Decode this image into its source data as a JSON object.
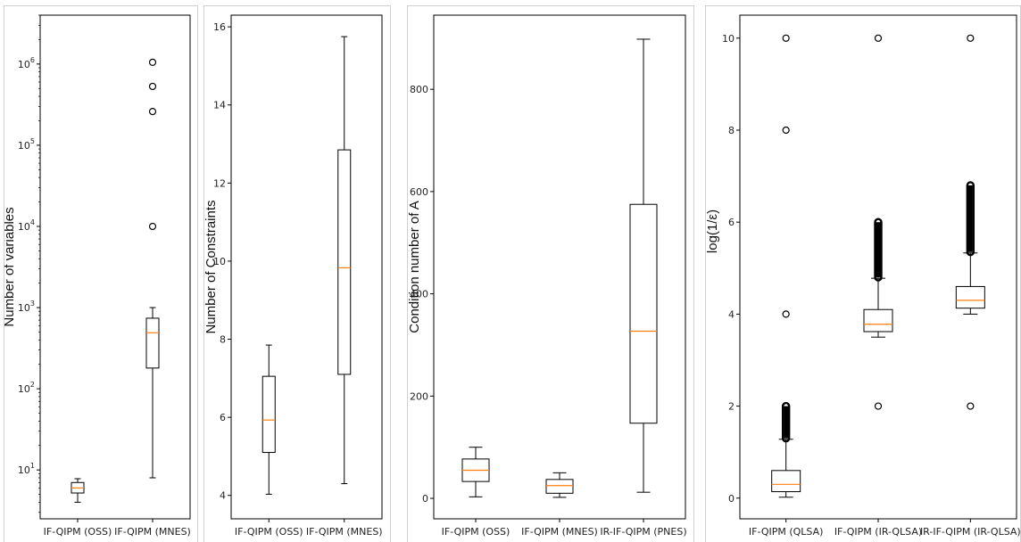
{
  "chart_data": [
    {
      "type": "box",
      "ylabel": "Number of variables",
      "yscale": "log",
      "ylim": [
        2.5,
        4000000
      ],
      "yticks": [
        {
          "value": 10,
          "base": "10",
          "exp": "1"
        },
        {
          "value": 100,
          "base": "10",
          "exp": "2"
        },
        {
          "value": 1000,
          "base": "10",
          "exp": "3"
        },
        {
          "value": 10000,
          "base": "10",
          "exp": "4"
        },
        {
          "value": 100000,
          "base": "10",
          "exp": "5"
        },
        {
          "value": 1000000,
          "base": "10",
          "exp": "6"
        }
      ],
      "categories": [
        "IF-QIPM (OSS)",
        "IF-QIPM (MNES)"
      ],
      "boxes": [
        {
          "whislo": 4,
          "q1": 5.2,
          "med": 6,
          "q3": 7,
          "whishi": 7.8,
          "fliers": []
        },
        {
          "whislo": 8,
          "q1": 180,
          "med": 490,
          "q3": 740,
          "whishi": 1000,
          "fliers": [
            10000,
            260000,
            530000,
            1050000
          ]
        }
      ]
    },
    {
      "type": "box",
      "ylabel": "Number of Constraints",
      "yscale": "linear",
      "ylim": [
        3.4,
        16.3
      ],
      "yticks": [
        {
          "value": 4,
          "label": "4"
        },
        {
          "value": 6,
          "label": "6"
        },
        {
          "value": 8,
          "label": "8"
        },
        {
          "value": 10,
          "label": "10"
        },
        {
          "value": 12,
          "label": "12"
        },
        {
          "value": 14,
          "label": "14"
        },
        {
          "value": 16,
          "label": "16"
        }
      ],
      "categories": [
        "IF-QIPM (OSS)",
        "IF-QIPM (MNES)"
      ],
      "boxes": [
        {
          "whislo": 4.03,
          "q1": 5.1,
          "med": 5.93,
          "q3": 7.05,
          "whishi": 7.85,
          "fliers": []
        },
        {
          "whislo": 4.3,
          "q1": 7.1,
          "med": 9.83,
          "q3": 12.85,
          "whishi": 15.75,
          "fliers": []
        }
      ]
    },
    {
      "type": "box",
      "ylabel": "Condition number of A",
      "yscale": "linear",
      "ylim": [
        -40,
        945
      ],
      "yticks": [
        {
          "value": 0,
          "label": "0"
        },
        {
          "value": 200,
          "label": "200"
        },
        {
          "value": 400,
          "label": "400"
        },
        {
          "value": 600,
          "label": "600"
        },
        {
          "value": 800,
          "label": "800"
        }
      ],
      "categories": [
        "IF-QIPM (OSS)",
        "IF-QIPM (MNES)",
        "IR-IF-QIPM (PNES)"
      ],
      "boxes": [
        {
          "whislo": 3,
          "q1": 33,
          "med": 55,
          "q3": 77,
          "whishi": 100,
          "fliers": []
        },
        {
          "whislo": 2,
          "q1": 10,
          "med": 25,
          "q3": 37,
          "whishi": 50,
          "fliers": []
        },
        {
          "whislo": 12,
          "q1": 147,
          "med": 327,
          "q3": 575,
          "whishi": 898,
          "fliers": []
        }
      ]
    },
    {
      "type": "box",
      "ylabel": "log(1/ε)",
      "yscale": "linear",
      "ylim": [
        -0.45,
        10.5
      ],
      "yticks": [
        {
          "value": 0,
          "label": "0"
        },
        {
          "value": 2,
          "label": "2"
        },
        {
          "value": 4,
          "label": "4"
        },
        {
          "value": 6,
          "label": "6"
        },
        {
          "value": 8,
          "label": "8"
        },
        {
          "value": 10,
          "label": "10"
        }
      ],
      "categories": [
        "IF-QIPM (QLSA)",
        "IF-QIPM (IR-QLSA)",
        "IR-IF-QIPM (IR-QLSA)"
      ],
      "boxes": [
        {
          "whislo": 0.02,
          "q1": 0.14,
          "med": 0.3,
          "q3": 0.6,
          "whishi": 1.28,
          "fliers": [
            4,
            8,
            10
          ],
          "dense_fliers": [
            1.3,
            2.0
          ]
        },
        {
          "whislo": 3.5,
          "q1": 3.62,
          "med": 3.78,
          "q3": 4.1,
          "whishi": 4.78,
          "fliers": [
            2,
            10
          ],
          "dense_fliers": [
            4.8,
            6.0
          ]
        },
        {
          "whislo": 4.0,
          "q1": 4.13,
          "med": 4.3,
          "q3": 4.6,
          "whishi": 5.33,
          "fliers": [
            2,
            10
          ],
          "dense_fliers": [
            5.35,
            6.8
          ]
        }
      ]
    }
  ],
  "colors": {
    "box": "#000000",
    "median": "#ff7f0e",
    "axis": "#000000"
  }
}
